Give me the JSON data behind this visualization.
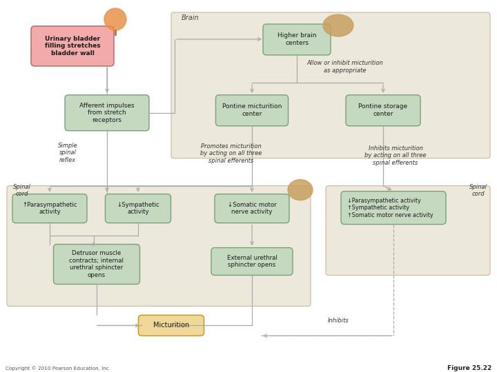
{
  "bg_color": "#ffffff",
  "brain_region_color": "#ede8dc",
  "pink_box_color": "#f2aaaa",
  "pink_box_edge": "#c07070",
  "green_box_color": "#c5d9c0",
  "green_box_edge": "#7a9f78",
  "tan_box_color": "#f0d898",
  "tan_box_edge": "#c8a030",
  "arrow_color": "#aaaaaa",
  "dashed_color": "#aaaaaa",
  "text_color": "#1a1a1a",
  "italic_color": "#222222",
  "brain_label": "Brain",
  "copyright": "Copyright © 2010 Pearson Education, Inc.",
  "figure_label": "Figure 25.22"
}
